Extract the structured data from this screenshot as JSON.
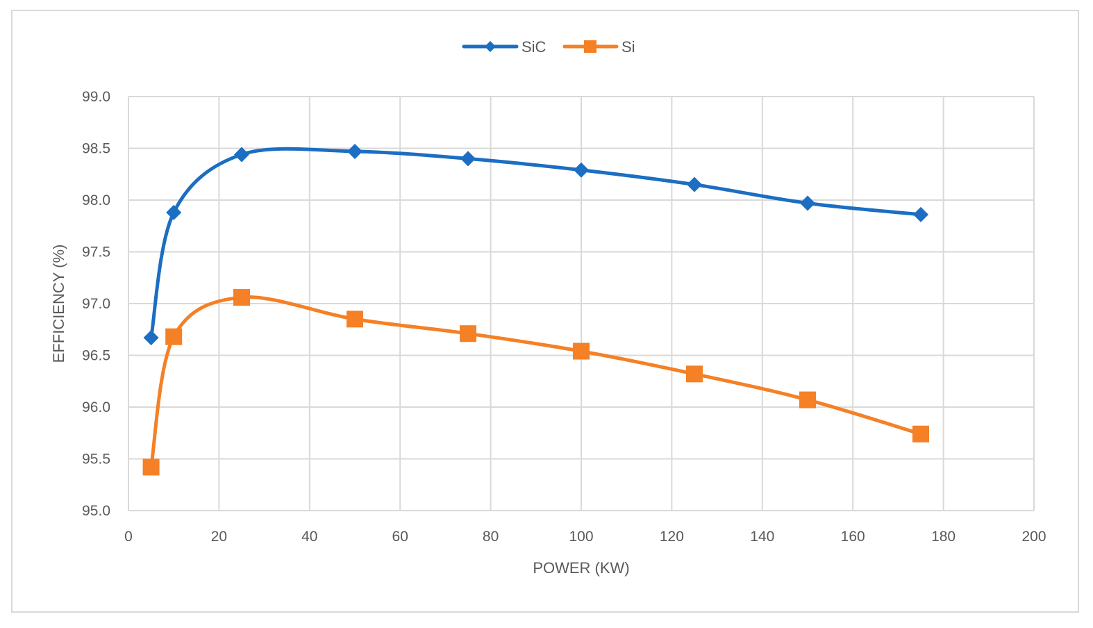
{
  "chart_data": {
    "type": "line",
    "title": "",
    "xlabel": "POWER (KW)",
    "ylabel": "EFFICIENCY (%)",
    "xlim": [
      0,
      200
    ],
    "ylim": [
      95.0,
      99.0
    ],
    "x_ticks": [
      "0",
      "20",
      "40",
      "60",
      "80",
      "100",
      "120",
      "140",
      "160",
      "180",
      "200"
    ],
    "y_ticks": [
      "95.0",
      "95.5",
      "96.0",
      "96.5",
      "97.0",
      "97.5",
      "98.0",
      "98.5",
      "99.0"
    ],
    "grid": true,
    "legend_position": "top",
    "smooth": true,
    "x": [
      5,
      10,
      25,
      50,
      75,
      100,
      125,
      150,
      175
    ],
    "series": [
      {
        "name": "SiC",
        "color": "#1B6EC2",
        "marker": "diamond",
        "values": [
          96.67,
          97.88,
          98.44,
          98.47,
          98.4,
          98.29,
          98.15,
          97.97,
          97.86
        ]
      },
      {
        "name": "Si",
        "color": "#F58025",
        "marker": "square",
        "values": [
          95.42,
          96.68,
          97.06,
          96.85,
          96.71,
          96.54,
          96.32,
          96.07,
          95.74
        ]
      }
    ]
  }
}
